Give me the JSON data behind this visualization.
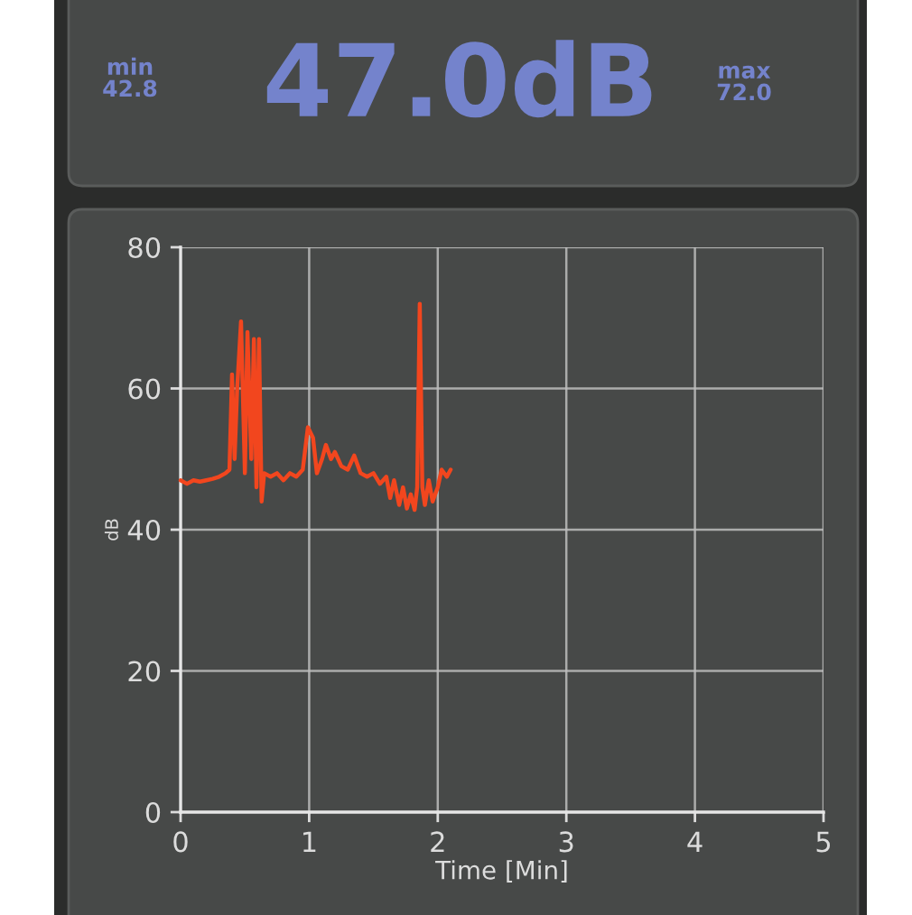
{
  "chart_data": {
    "type": "line",
    "title": "47.0dB",
    "annotations": [
      "min\n42.8",
      "max\n72.0"
    ],
    "xlabel": "Time [Min]",
    "ylabel": "dB",
    "x": [
      0.0,
      0.05,
      0.1,
      0.15,
      0.2,
      0.25,
      0.3,
      0.35,
      0.38,
      0.4,
      0.42,
      0.44,
      0.47,
      0.5,
      0.52,
      0.55,
      0.57,
      0.59,
      0.61,
      0.63,
      0.65,
      0.7,
      0.75,
      0.8,
      0.85,
      0.9,
      0.95,
      0.99,
      1.03,
      1.06,
      1.1,
      1.13,
      1.17,
      1.2,
      1.25,
      1.3,
      1.35,
      1.4,
      1.45,
      1.5,
      1.55,
      1.6,
      1.63,
      1.66,
      1.7,
      1.73,
      1.76,
      1.79,
      1.82,
      1.84,
      1.86,
      1.88,
      1.9,
      1.93,
      1.96,
      2.0,
      2.03,
      2.07,
      2.1
    ],
    "series": [
      {
        "color": "#f2461e",
        "values": [
          47,
          46.5,
          47,
          46.8,
          47,
          47.2,
          47.5,
          48,
          48.5,
          62,
          50,
          60,
          69.5,
          48,
          68,
          50,
          67,
          46,
          67,
          44,
          48,
          47.5,
          48,
          47,
          48,
          47.5,
          48.5,
          54.5,
          53,
          48,
          50,
          52,
          50,
          51,
          49,
          48.5,
          50.5,
          48,
          47.5,
          48,
          46.5,
          47.5,
          44.5,
          47,
          43.5,
          46,
          43,
          45,
          42.8,
          46,
          72,
          46,
          43.5,
          47,
          44,
          46,
          48.5,
          47.5,
          48.5
        ]
      }
    ],
    "xlim": [
      0,
      5
    ],
    "xticks": [
      0,
      1,
      2,
      3,
      4,
      5
    ],
    "ylim": [
      0,
      80
    ],
    "yticks": [
      0,
      20,
      40,
      60,
      80
    ],
    "grid": true
  }
}
